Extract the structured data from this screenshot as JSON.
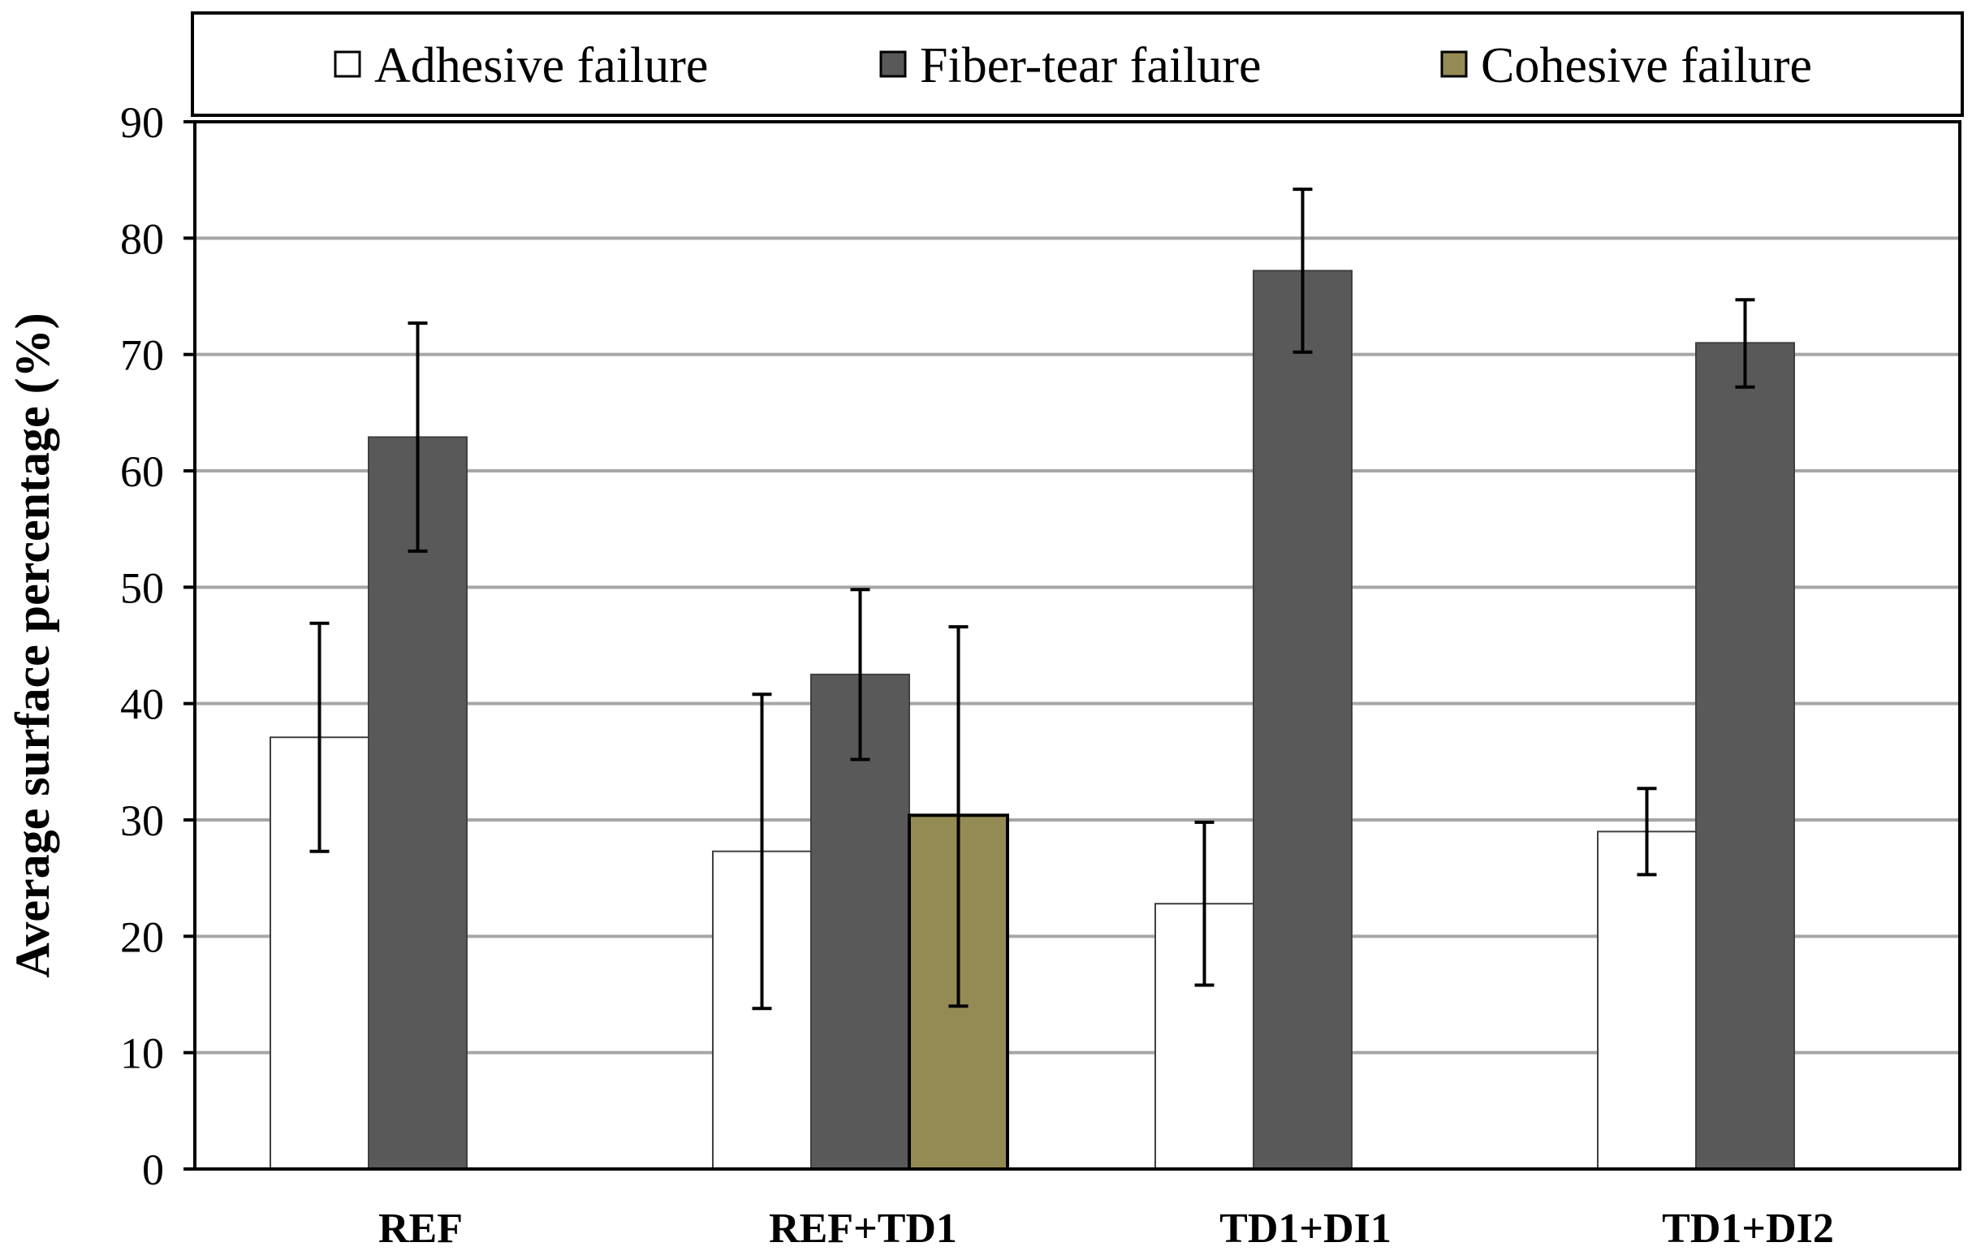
{
  "chart_data": {
    "type": "bar",
    "title": "",
    "xlabel": "",
    "ylabel": "Average surface percentage (%)",
    "ylim": [
      0,
      90
    ],
    "yticks": [
      0,
      10,
      20,
      30,
      40,
      50,
      60,
      70,
      80,
      90
    ],
    "grid": true,
    "legend_position": "top",
    "categories": [
      "REF",
      "REF+TD1",
      "TD1+DI1",
      "TD1+DI2"
    ],
    "series": [
      {
        "name": "Adhesive failure",
        "color": "#ffffff",
        "values": [
          37.1,
          27.3,
          22.8,
          29.0
        ],
        "error_low": [
          27.3,
          13.8,
          15.8,
          25.3
        ],
        "error_high": [
          46.9,
          40.8,
          29.8,
          32.7
        ]
      },
      {
        "name": "Fiber-tear failure",
        "color": "#595959",
        "values": [
          62.9,
          42.5,
          77.2,
          71.0
        ],
        "error_low": [
          53.1,
          35.2,
          70.2,
          67.2
        ],
        "error_high": [
          72.7,
          49.8,
          84.2,
          74.7
        ]
      },
      {
        "name": "Cohesive failure",
        "color": "#948a54",
        "values": [
          null,
          30.4,
          null,
          null
        ],
        "error_low": [
          null,
          14.0,
          null,
          null
        ],
        "error_high": [
          null,
          46.6,
          null,
          null
        ]
      }
    ]
  }
}
